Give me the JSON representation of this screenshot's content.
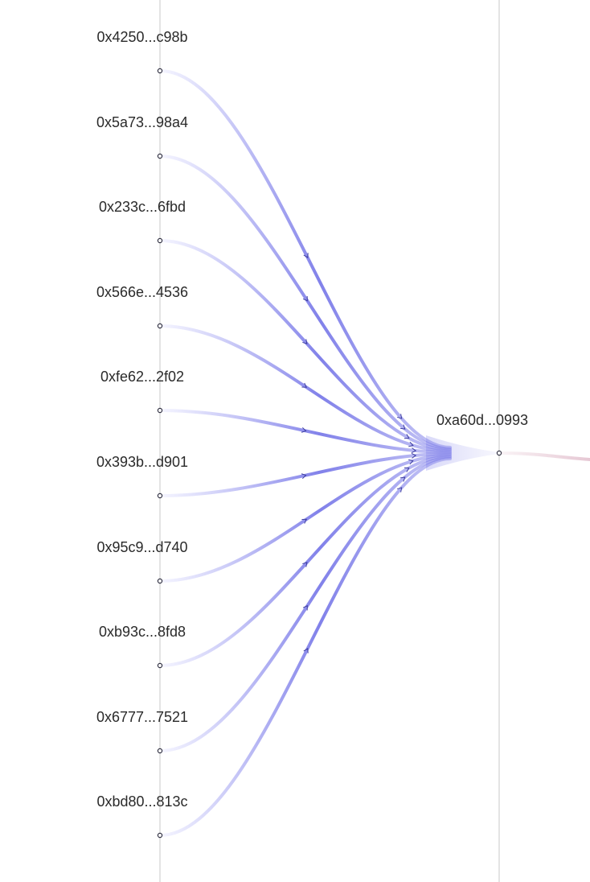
{
  "graph": {
    "sources": [
      {
        "id": "s0",
        "label": "0x4250...c98b"
      },
      {
        "id": "s1",
        "label": "0x5a73...98a4"
      },
      {
        "id": "s2",
        "label": "0x233c...6fbd"
      },
      {
        "id": "s3",
        "label": "0x566e...4536"
      },
      {
        "id": "s4",
        "label": "0xfe62...2f02"
      },
      {
        "id": "s5",
        "label": "0x393b...d901"
      },
      {
        "id": "s6",
        "label": "0x95c9...d740"
      },
      {
        "id": "s7",
        "label": "0xb93c...8fd8"
      },
      {
        "id": "s8",
        "label": "0x6777...7521"
      },
      {
        "id": "s9",
        "label": "0xbd80...813c"
      }
    ],
    "target": {
      "id": "t0",
      "label": "0xa60d...0993"
    },
    "edges": [
      {
        "from": "s0",
        "to": "t0"
      },
      {
        "from": "s1",
        "to": "t0"
      },
      {
        "from": "s2",
        "to": "t0"
      },
      {
        "from": "s3",
        "to": "t0"
      },
      {
        "from": "s4",
        "to": "t0"
      },
      {
        "from": "s5",
        "to": "t0"
      },
      {
        "from": "s6",
        "to": "t0"
      },
      {
        "from": "s7",
        "to": "t0"
      },
      {
        "from": "s8",
        "to": "t0"
      },
      {
        "from": "s9",
        "to": "t0"
      }
    ],
    "outgoing": [
      {
        "from": "t0"
      }
    ],
    "colors": {
      "edge": "#6b6be6",
      "edge_light": "#eeeeff",
      "outgoing": "#e6c8d4",
      "axis": "#dcdcdc",
      "label": "#2a2a2a"
    }
  }
}
